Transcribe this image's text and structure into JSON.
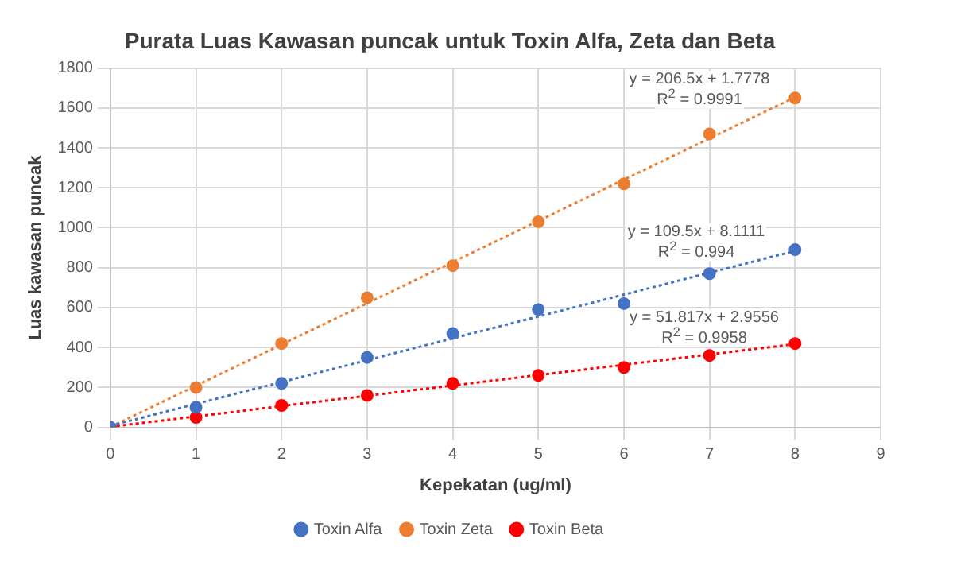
{
  "chart_data": {
    "type": "scatter",
    "title": "Purata Luas Kawasan puncak untuk Toxin Alfa, Zeta dan Beta",
    "xlabel": "Kepekatan (ug/ml)",
    "ylabel": "Luas kawasan puncak",
    "xlim": [
      0,
      9
    ],
    "xticks": [
      0,
      1,
      2,
      3,
      4,
      5,
      6,
      7,
      8,
      9
    ],
    "ylim": [
      0,
      1800
    ],
    "yticks": [
      0,
      200,
      400,
      600,
      800,
      {
        "value": 1000,
        "label": "1000"
      },
      {
        "value": 1200,
        "label": "1200"
      },
      {
        "value": 1400,
        "label": "1400"
      },
      {
        "value": 1600,
        "label": "1600"
      },
      {
        "value": 1800,
        "label": "1800"
      }
    ],
    "grid": true,
    "legend": "bottom",
    "marker": "circle",
    "series": [
      {
        "name": "Toxin Alfa",
        "color": "#4472c4",
        "x": [
          0,
          1,
          2,
          3,
          4,
          5,
          6,
          7,
          8
        ],
        "values": [
          0,
          100,
          220,
          350,
          470,
          590,
          620,
          770,
          890
        ]
      },
      {
        "name": "Toxin Zeta",
        "color": "#ed7d31",
        "x": [
          0,
          1,
          2,
          3,
          4,
          5,
          6,
          7,
          8
        ],
        "values": [
          0,
          200,
          420,
          650,
          810,
          1030,
          1220,
          1470,
          1650
        ]
      },
      {
        "name": "Toxin Beta",
        "color": "#ff0000",
        "x": [
          0,
          1,
          2,
          3,
          4,
          5,
          6,
          7,
          8
        ],
        "values": [
          0,
          50,
          110,
          160,
          220,
          260,
          300,
          360,
          420
        ]
      },
      {
        "type": "line",
        "marker": "none",
        "color": "#4472c4",
        "line_style": "dotted",
        "x": [
          0,
          8
        ],
        "values": [
          8,
          884
        ]
      },
      {
        "type": "line",
        "marker": "none",
        "color": "#ed7d31",
        "line_style": "dotted",
        "x": [
          0,
          8
        ],
        "values": [
          2,
          1654
        ]
      },
      {
        "type": "line",
        "marker": "none",
        "color": "#ff0000",
        "line_style": "dotted",
        "x": [
          0,
          8
        ],
        "values": [
          3,
          417
        ]
      }
    ],
    "annotations": [
      "y = 206.5x + 1.7778",
      "R$^{2}$ = 0.9991",
      "y = 109.5x + 8.1111",
      "R$^{2}$ = 0.994",
      "y = 51.817x + 2.9556",
      "R$^{2}$ = 0.9958"
    ]
  }
}
